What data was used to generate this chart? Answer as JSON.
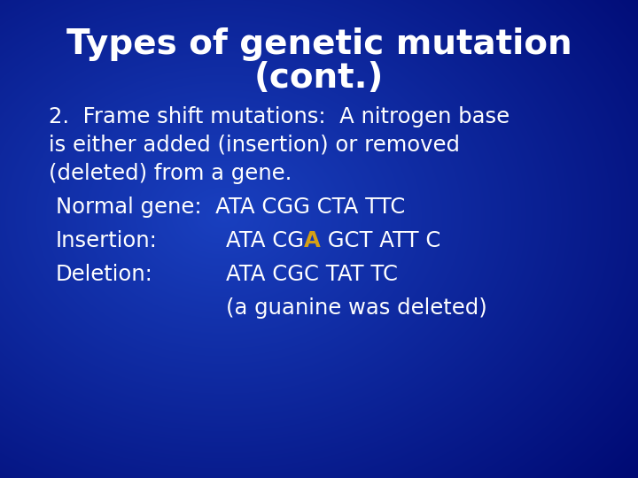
{
  "title_line1": "Types of genetic mutation",
  "title_line2": "(cont.)",
  "title_color": "#ffffff",
  "body_color": "#ffffff",
  "highlight_color": "#d4a017",
  "title_fontsize": 28,
  "body_fontsize": 17.5,
  "line1": "2.  Frame shift mutations:  A nitrogen base",
  "line2": "is either added (insertion) or removed",
  "line3": "(deleted) from a gene.",
  "normal_label": "Normal gene:  ATA CGG CTA TTC",
  "insertion_label": "Insertion:",
  "insertion_seq_before": "ATA CG",
  "insertion_A": "A",
  "insertion_seq_after": " GCT ATT C",
  "deletion_label": "Deletion:",
  "deletion_seq": "ATA CGC TAT TC",
  "guanine_note": "(a guanine was deleted)",
  "bg_color": "#1a3fcc"
}
